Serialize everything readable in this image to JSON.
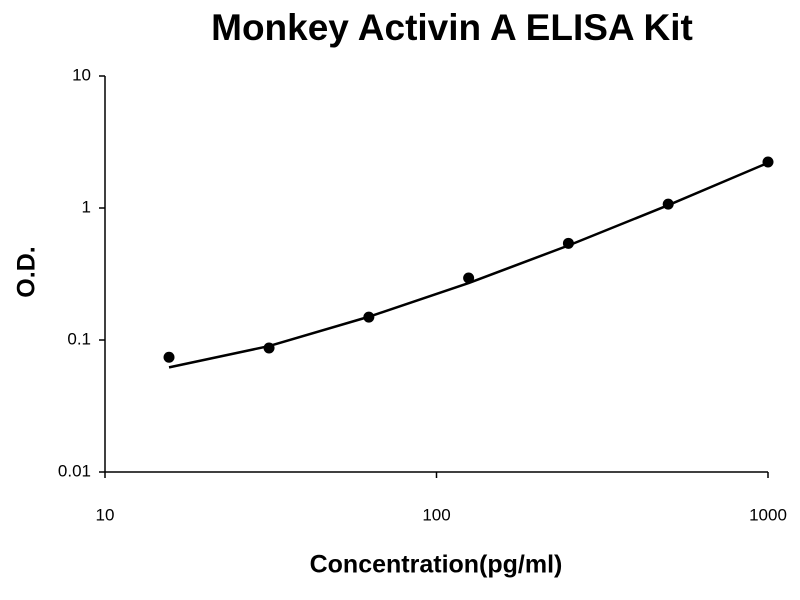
{
  "chart_data": {
    "type": "scatter",
    "title": "Monkey Activin A ELISA Kit",
    "x_label": "Concentration(pg/ml)",
    "y_label": "O.D.",
    "xscale": "log",
    "yscale": "log",
    "xlim": [
      10,
      1000
    ],
    "ylim": [
      0.01,
      10
    ],
    "xticks": [
      10,
      100,
      1000
    ],
    "yticks": [
      0.01,
      0.1,
      1,
      10
    ],
    "grid": false,
    "x": [
      15.6,
      31.25,
      62.5,
      125,
      250,
      500,
      1000
    ],
    "series": [
      {
        "type": "scatter",
        "color": "#000000",
        "values": [
          0.074,
          0.087,
          0.149,
          0.295,
          0.54,
          1.07,
          2.23
        ]
      },
      {
        "type": "line",
        "color": "#000000",
        "values": [
          0.062,
          0.09,
          0.15,
          0.27,
          0.52,
          1.05,
          2.2
        ]
      }
    ]
  }
}
